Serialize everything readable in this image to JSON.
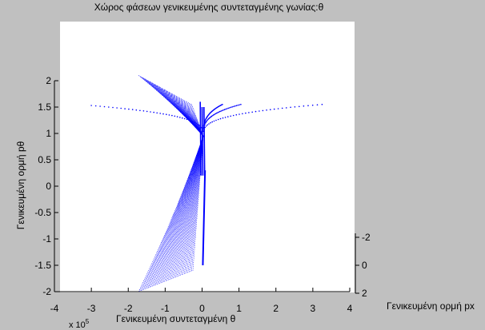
{
  "chart_data": {
    "type": "scatter",
    "title": "Χώρος φάσεων γενικευμένης συντεταγμένης γωνίας:θ",
    "xlabel": "Γενικευμένη συντεταγμένη θ",
    "ylabel": "Γενικευμένη ορμή pθ",
    "zlabel": "Γενικευμένη ορμή px",
    "x_exponent_base": "x 10",
    "x_exponent": "5",
    "xlim": [
      -4,
      4
    ],
    "ylim": [
      -2,
      2
    ],
    "zlim": [
      -2,
      2
    ],
    "xticks": [
      "-4",
      "-3",
      "-2",
      "-1",
      "0",
      "1",
      "2",
      "3",
      "4"
    ],
    "yticks": [
      "-2",
      "-1.5",
      "-1",
      "-0.5",
      "0",
      "0.5",
      "1",
      "1.5",
      "2"
    ],
    "zticks": [
      "-2",
      "0",
      "2"
    ],
    "grid": false,
    "legend": "none",
    "series_color": "#0000ff",
    "bands": [
      {
        "x_outer": -1.72,
        "y_outer": 2.1,
        "x_inner": -0.28,
        "y_inner": 1.55
      },
      {
        "x_outer": -1.72,
        "y_outer": -2.0,
        "x_inner": -0.25,
        "y_inner": -1.6
      }
    ],
    "dotted_arcs": [
      {
        "x_far": -3.0,
        "y_far": 1.53
      },
      {
        "x_far": 3.25,
        "y_far": 1.55
      },
      {
        "x_far": 1.05,
        "y_far": 1.55
      },
      {
        "x_far": 0.55,
        "y_far": 1.55
      }
    ],
    "spines": [
      {
        "x": -0.05,
        "y_top": 1.6
      },
      {
        "x": 0.0,
        "y_top": 1.5
      },
      {
        "x": 0.05,
        "y_top": 1.5
      }
    ]
  }
}
